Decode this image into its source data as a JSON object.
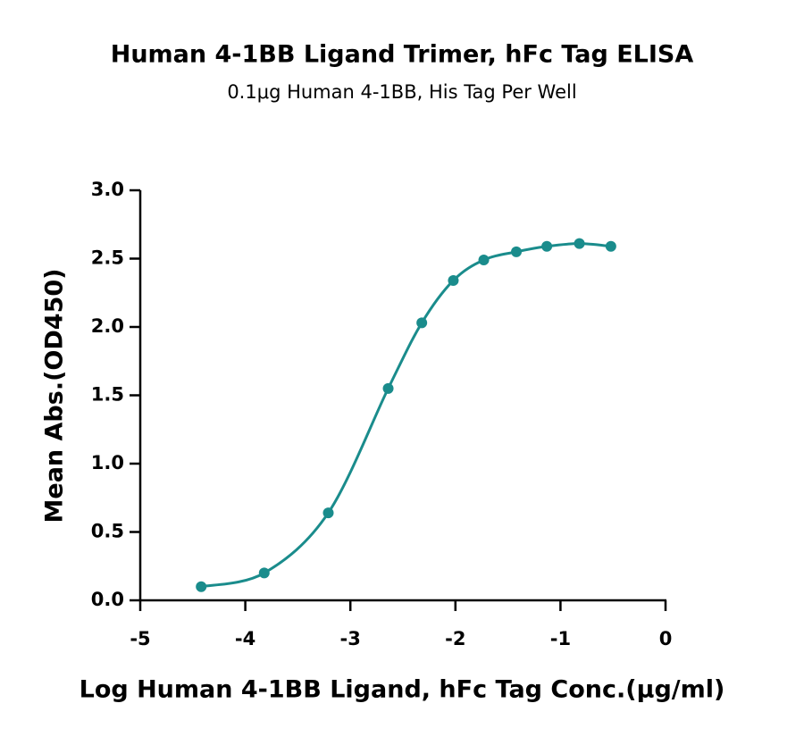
{
  "chart_data": {
    "type": "scatter",
    "title": "Human 4-1BB Ligand Trimer, hFc Tag ELISA",
    "subtitle": "0.1μg Human 4-1BB, His Tag Per Well",
    "x_label": "Log Human 4-1BB Ligand, hFc Tag Conc.(μg/ml)",
    "y_label": "Mean Abs.(OD450)",
    "x": [
      -4.42,
      -3.82,
      -3.21,
      -2.64,
      -2.32,
      -2.02,
      -1.73,
      -1.42,
      -1.13,
      -0.82,
      -0.52
    ],
    "values": [
      0.1,
      0.2,
      0.64,
      1.55,
      2.03,
      2.34,
      2.49,
      2.55,
      2.59,
      2.61,
      2.59
    ],
    "color": "#1a8c8c",
    "xlim": [
      -5,
      0
    ],
    "xticks": [
      -5,
      -4,
      -3,
      -2,
      -1,
      0
    ],
    "ylim": [
      0,
      3
    ],
    "yticks": [
      {
        "value": 0,
        "label": "0.0"
      },
      0.5,
      {
        "value": 1,
        "label": "1.0"
      },
      1.5,
      {
        "value": 2,
        "label": "2.0"
      },
      2.5,
      {
        "value": 3,
        "label": "3.0"
      }
    ]
  }
}
